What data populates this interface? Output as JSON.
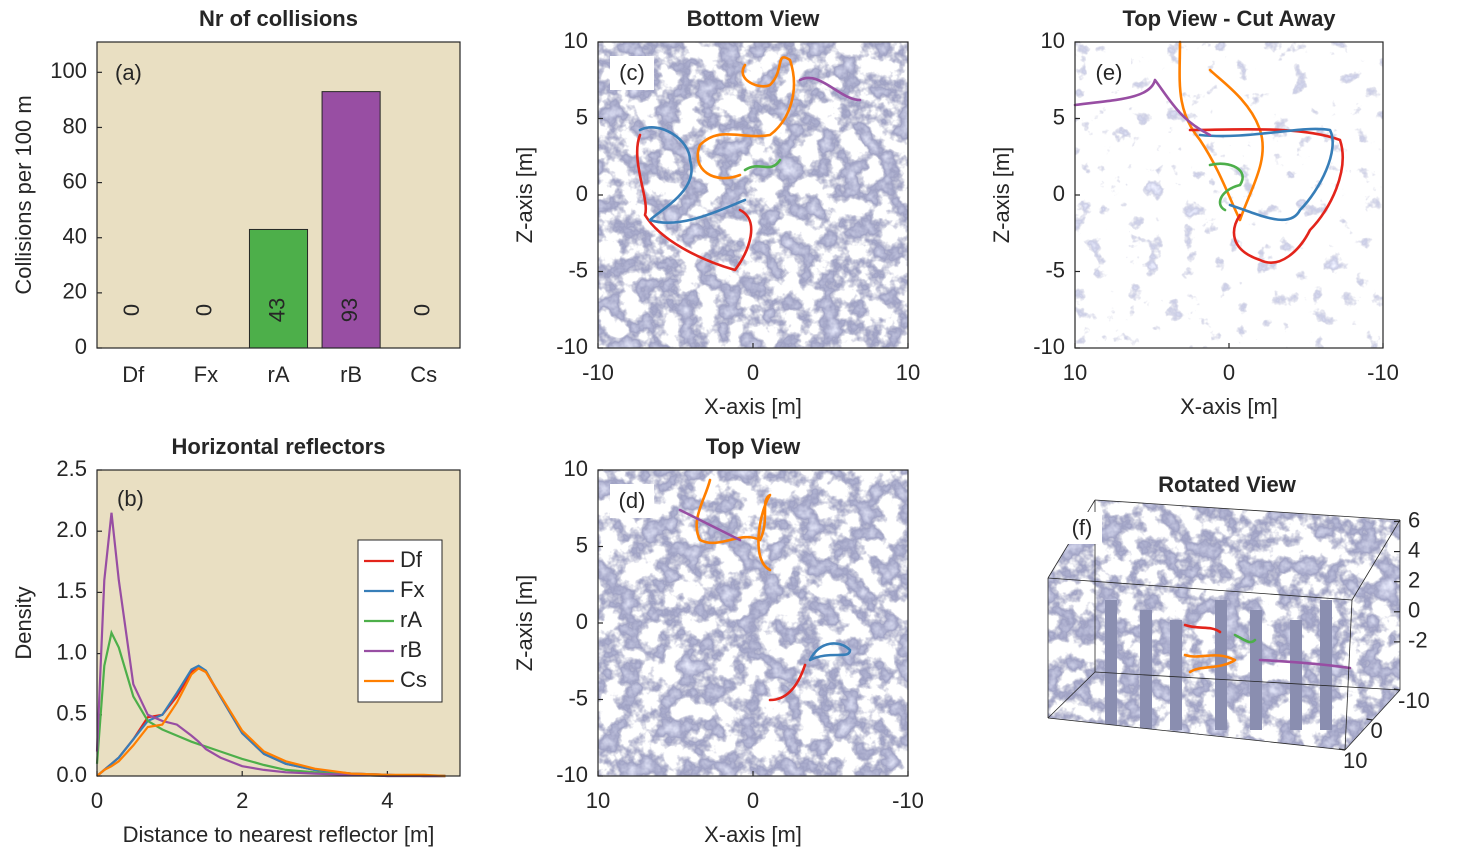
{
  "chart_data": [
    {
      "type": "bar",
      "title": "Nr of collisions",
      "panel": "(a)",
      "ylabel": "Collisions per 100 m",
      "categories": [
        "Df",
        "Fx",
        "rA",
        "rB",
        "Cs"
      ],
      "values": [
        0,
        0,
        43,
        93,
        0
      ],
      "colors": [
        "#e3241b",
        "#377eb8",
        "#4daf4a",
        "#984ea3",
        "#ff7f00"
      ],
      "background": "#e9dfc2",
      "ylim": [
        0,
        111
      ],
      "yticks": [
        0,
        20,
        40,
        60,
        80,
        100
      ]
    },
    {
      "type": "line",
      "title": "Horizontal reflectors",
      "panel": "(b)",
      "xlabel": "Distance to nearest reflector [m]",
      "ylabel": "Density",
      "background": "#e9dfc2",
      "legend": "right",
      "x": [
        0,
        0.1,
        0.2,
        0.3,
        0.5,
        0.7,
        0.9,
        1.1,
        1.3,
        1.4,
        1.5,
        1.7,
        2.0,
        2.3,
        2.6,
        3.0,
        3.5,
        4.0,
        4.5,
        4.8
      ],
      "series": [
        {
          "name": "Df",
          "color": "#e3241b",
          "values": [
            0,
            0.05,
            0.1,
            0.15,
            0.3,
            0.48,
            0.5,
            0.65,
            0.85,
            0.88,
            0.85,
            0.65,
            0.35,
            0.18,
            0.1,
            0.05,
            0.02,
            0.01,
            0,
            0
          ]
        },
        {
          "name": "Fx",
          "color": "#377eb8",
          "values": [
            0,
            0.05,
            0.1,
            0.15,
            0.3,
            0.45,
            0.5,
            0.68,
            0.87,
            0.9,
            0.86,
            0.65,
            0.35,
            0.18,
            0.1,
            0.05,
            0.02,
            0.01,
            0,
            0
          ]
        },
        {
          "name": "rA",
          "color": "#4daf4a",
          "values": [
            0.1,
            0.9,
            1.17,
            1.05,
            0.65,
            0.45,
            0.38,
            0.33,
            0.28,
            0.26,
            0.24,
            0.2,
            0.14,
            0.09,
            0.05,
            0.03,
            0.01,
            0,
            0,
            0
          ]
        },
        {
          "name": "rB",
          "color": "#984ea3",
          "values": [
            0.2,
            1.6,
            2.15,
            1.6,
            0.75,
            0.5,
            0.45,
            0.42,
            0.33,
            0.28,
            0.22,
            0.15,
            0.08,
            0.05,
            0.03,
            0.02,
            0.01,
            0,
            0,
            0
          ]
        },
        {
          "name": "Cs",
          "color": "#ff7f00",
          "values": [
            0,
            0.05,
            0.08,
            0.12,
            0.25,
            0.4,
            0.42,
            0.6,
            0.83,
            0.88,
            0.85,
            0.66,
            0.37,
            0.2,
            0.12,
            0.06,
            0.02,
            0.01,
            0.01,
            0
          ]
        }
      ],
      "xlim": [
        0,
        5
      ],
      "ylim": [
        0,
        2.5
      ],
      "xticks": [
        0,
        2,
        4
      ],
      "yticks": [
        {
          "value": 0,
          "label": "0.0"
        },
        0.5,
        {
          "value": 1,
          "label": "1.0"
        },
        1.5,
        {
          "value": 2,
          "label": "2.0"
        },
        2.5
      ]
    },
    {
      "type": "image",
      "title": "Bottom View",
      "panel": "(c)",
      "xlabel": "X-axis [m]",
      "ylabel": "Z-axis [m]",
      "xlim": [
        -10,
        10
      ],
      "ylim": [
        -10,
        10
      ],
      "xticks": [
        -10,
        0,
        10
      ],
      "yticks": [
        -10,
        -5,
        0,
        5,
        10
      ]
    },
    {
      "type": "image",
      "title": "Top View",
      "panel": "(d)",
      "xlabel": "X-axis [m]",
      "ylabel": "Z-axis [m]",
      "xlim": [
        10,
        -10
      ],
      "ylim": [
        -10,
        10
      ],
      "xticks": [
        10,
        0,
        -10
      ],
      "yticks": [
        -10,
        -5,
        0,
        5,
        10
      ]
    },
    {
      "type": "image",
      "title": "Top View - Cut Away",
      "panel": "(e)",
      "xlabel": "X-axis [m]",
      "ylabel": "Z-axis [m]",
      "xlim": [
        10,
        -10
      ],
      "ylim": [
        -10,
        10
      ],
      "xticks": [
        10,
        0,
        -10
      ],
      "yticks": [
        -10,
        -5,
        0,
        5,
        10
      ]
    },
    {
      "type": "image3d",
      "title": "Rotated View",
      "panel": "(f)",
      "zlim": [
        -5.2,
        6.1
      ],
      "zticks": [
        -2,
        0,
        2,
        4,
        6
      ],
      "ylim": [
        -10,
        10
      ],
      "yticks": [
        -10,
        0,
        10
      ]
    }
  ]
}
